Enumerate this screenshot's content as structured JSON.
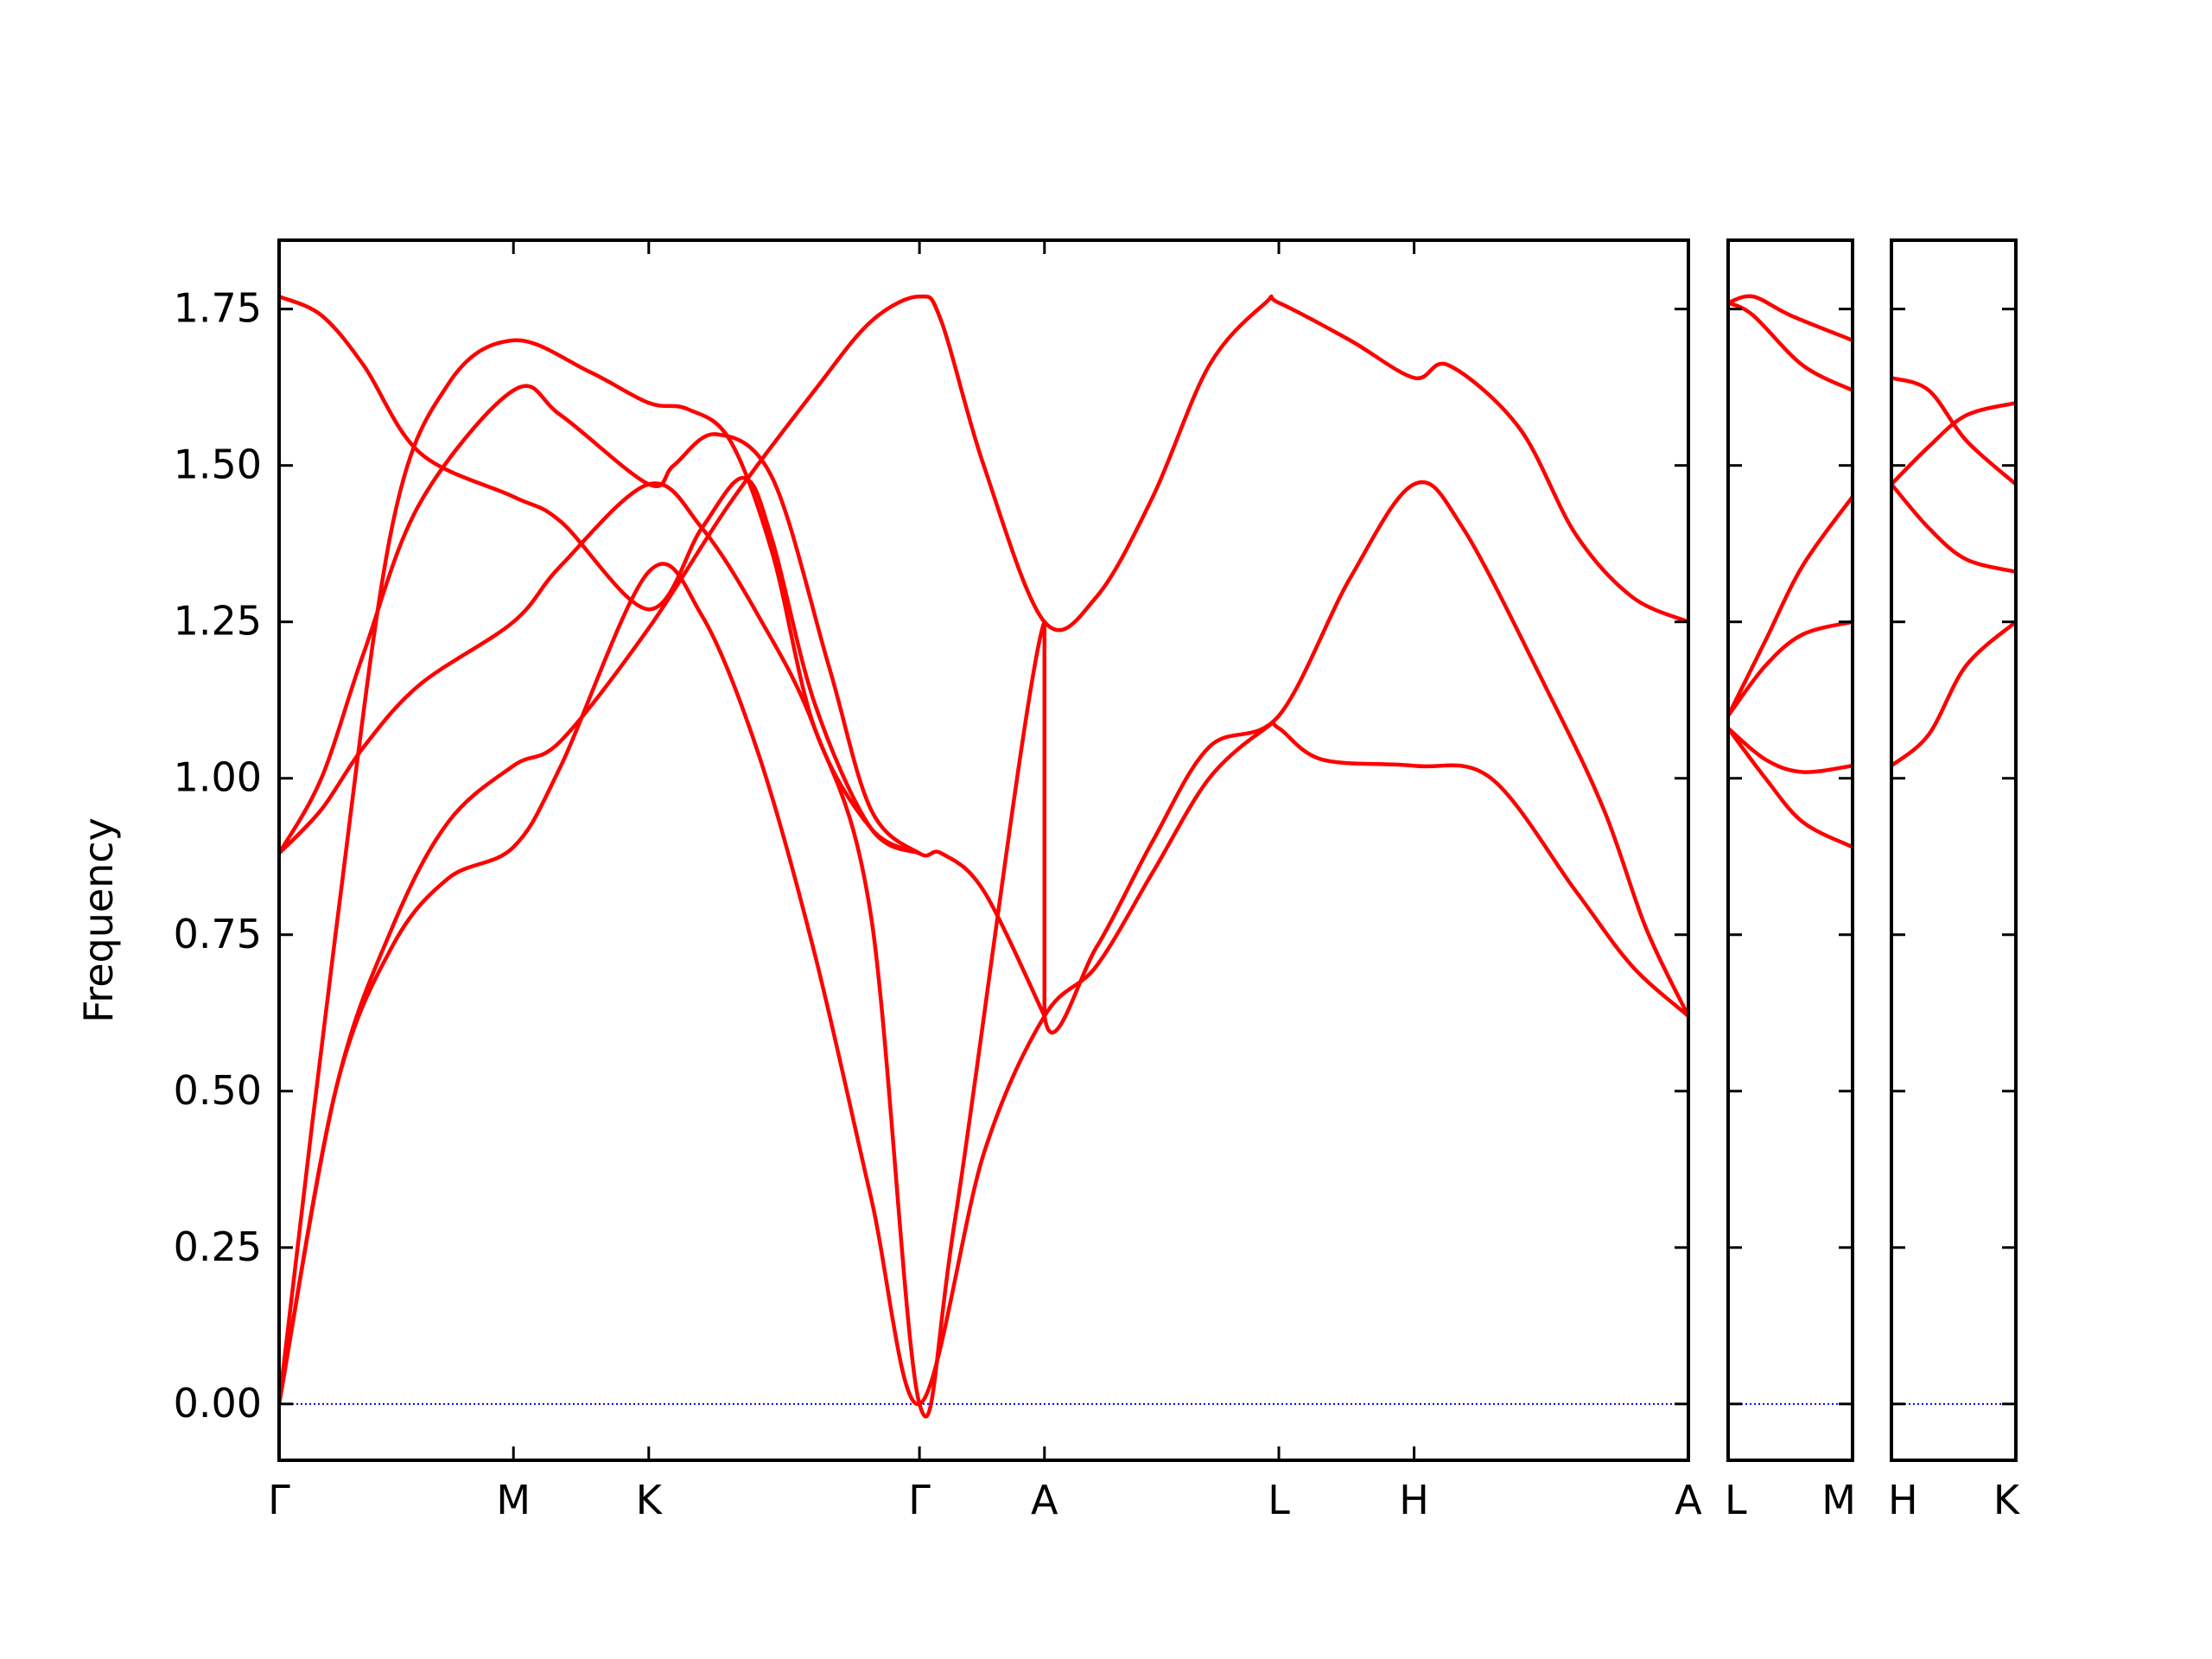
{
  "chart_data": {
    "type": "line",
    "ylabel": "Frequency",
    "xlabel": "",
    "title": "",
    "ylim": [
      -0.09,
      1.86
    ],
    "yticks": [
      "0.00",
      "0.25",
      "0.50",
      "0.75",
      "1.00",
      "1.25",
      "1.50",
      "1.75"
    ],
    "ytick_values": [
      0.0,
      0.25,
      0.5,
      0.75,
      1.0,
      1.25,
      1.5,
      1.75
    ],
    "grid": false,
    "legend": "none",
    "colors": {
      "band": "#ff0000",
      "zero_line": "#0000ff",
      "axes": "#000000"
    },
    "panels": [
      {
        "id": "p1",
        "path_labels": [
          "Γ",
          "M",
          "K",
          "Γ",
          "A",
          "L",
          "H",
          "A"
        ],
        "path_positions": [
          0.0,
          0.1663,
          0.2623,
          0.4544,
          0.5431,
          0.7094,
          0.8054,
          1.0
        ],
        "bands": [
          [
            [
              0,
              0
            ],
            [
              0.04,
              0.5
            ],
            [
              0.08,
              0.76
            ],
            [
              0.12,
              0.93
            ],
            [
              0.1663,
              1.02
            ],
            [
              0.2,
              1.06
            ],
            [
              0.2623,
              1.24
            ],
            [
              0.32,
              1.44
            ],
            [
              0.38,
              1.62
            ],
            [
              0.42,
              1.73
            ],
            [
              0.4544,
              1.77
            ],
            [
              0.47,
              1.73
            ],
            [
              0.5,
              1.5
            ],
            [
              0.5431,
              1.25
            ],
            [
              0.58,
              1.29
            ],
            [
              0.62,
              1.45
            ],
            [
              0.66,
              1.66
            ],
            [
              0.7,
              1.76
            ],
            [
              0.7094,
              1.76
            ],
            [
              0.76,
              1.7
            ],
            [
              0.8054,
              1.64
            ],
            [
              0.83,
              1.66
            ],
            [
              0.88,
              1.56
            ],
            [
              0.92,
              1.39
            ],
            [
              0.96,
              1.29
            ],
            [
              1.0,
              1.25
            ]
          ],
          [
            [
              0,
              0
            ],
            [
              0.04,
              0.5
            ],
            [
              0.08,
              0.73
            ],
            [
              0.12,
              0.84
            ],
            [
              0.1663,
              0.89
            ],
            [
              0.2,
              1.02
            ],
            [
              0.2623,
              1.33
            ],
            [
              0.3,
              1.26
            ],
            [
              0.34,
              1.04
            ],
            [
              0.38,
              0.72
            ],
            [
              0.42,
              0.33
            ],
            [
              0.4544,
              0.0
            ],
            [
              0.5,
              0.4
            ],
            [
              0.5431,
              0.62
            ],
            [
              0.58,
              0.7
            ],
            [
              0.62,
              0.85
            ],
            [
              0.66,
              1.0
            ],
            [
              0.7,
              1.08
            ],
            [
              0.7094,
              1.08
            ],
            [
              0.74,
              1.03
            ],
            [
              0.8054,
              1.02
            ],
            [
              0.86,
              1.0
            ],
            [
              0.92,
              0.82
            ],
            [
              0.96,
              0.7
            ],
            [
              1.0,
              0.62
            ]
          ],
          [
            [
              0,
              0.88
            ],
            [
              0.03,
              0.95
            ],
            [
              0.06,
              1.05
            ],
            [
              0.1,
              1.15
            ],
            [
              0.1663,
              1.25
            ],
            [
              0.2,
              1.34
            ],
            [
              0.2623,
              1.47
            ],
            [
              0.3,
              1.4
            ],
            [
              0.34,
              1.26
            ],
            [
              0.38,
              1.08
            ],
            [
              0.42,
              0.78
            ],
            [
              0.4544,
              0.0
            ],
            [
              0.48,
              0.3
            ],
            [
              0.5431,
              1.25
            ],
            [
              0.5431,
              0.62
            ],
            [
              0.58,
              0.73
            ],
            [
              0.62,
              0.9
            ],
            [
              0.66,
              1.05
            ],
            [
              0.7094,
              1.1
            ],
            [
              0.76,
              1.32
            ],
            [
              0.8054,
              1.47
            ],
            [
              0.84,
              1.4
            ],
            [
              0.9,
              1.14
            ],
            [
              0.94,
              0.95
            ],
            [
              0.97,
              0.76
            ],
            [
              1.0,
              0.62
            ]
          ],
          [
            [
              0,
              0.88
            ],
            [
              0.03,
              1.0
            ],
            [
              0.06,
              1.2
            ],
            [
              0.1,
              1.44
            ],
            [
              0.1663,
              1.62
            ],
            [
              0.2,
              1.58
            ],
            [
              0.2623,
              1.47
            ],
            [
              0.28,
              1.5
            ],
            [
              0.31,
              1.55
            ],
            [
              0.35,
              1.48
            ],
            [
              0.39,
              1.18
            ],
            [
              0.42,
              0.95
            ],
            [
              0.4544,
              0.88
            ],
            [
              0.47,
              0.88
            ],
            [
              0.5,
              0.82
            ],
            [
              0.5431,
              0.62
            ]
          ],
          [
            [
              0,
              1.77
            ],
            [
              0.03,
              1.74
            ],
            [
              0.06,
              1.66
            ],
            [
              0.1,
              1.52
            ],
            [
              0.1663,
              1.45
            ],
            [
              0.2,
              1.41
            ],
            [
              0.2623,
              1.27
            ],
            [
              0.3,
              1.4
            ],
            [
              0.33,
              1.48
            ],
            [
              0.35,
              1.38
            ],
            [
              0.38,
              1.12
            ],
            [
              0.42,
              0.92
            ],
            [
              0.4544,
              0.88
            ]
          ],
          [
            [
              0,
              0
            ],
            [
              0.04,
              0.75
            ],
            [
              0.08,
              1.4
            ],
            [
              0.12,
              1.63
            ],
            [
              0.1663,
              1.7
            ],
            [
              0.22,
              1.65
            ],
            [
              0.2623,
              1.6
            ],
            [
              0.29,
              1.59
            ],
            [
              0.32,
              1.54
            ],
            [
              0.35,
              1.36
            ],
            [
              0.38,
              1.08
            ],
            [
              0.42,
              0.92
            ],
            [
              0.4544,
              0.88
            ]
          ]
        ],
        "zero_line": true
      },
      {
        "id": "p2",
        "path_labels": [
          "L",
          "M"
        ],
        "path_positions": [
          0.0,
          1.0
        ],
        "bands": [
          [
            [
              0,
              1.76
            ],
            [
              0.2,
              1.77
            ],
            [
              0.5,
              1.74
            ],
            [
              1.0,
              1.7
            ]
          ],
          [
            [
              0,
              1.76
            ],
            [
              0.2,
              1.74
            ],
            [
              0.6,
              1.66
            ],
            [
              1.0,
              1.62
            ]
          ],
          [
            [
              0,
              1.1
            ],
            [
              0.3,
              1.22
            ],
            [
              0.6,
              1.34
            ],
            [
              1.0,
              1.45
            ]
          ],
          [
            [
              0,
              1.1
            ],
            [
              0.3,
              1.18
            ],
            [
              0.6,
              1.23
            ],
            [
              1.0,
              1.25
            ]
          ],
          [
            [
              0,
              1.08
            ],
            [
              0.3,
              1.03
            ],
            [
              0.6,
              1.01
            ],
            [
              1.0,
              1.02
            ]
          ],
          [
            [
              0,
              1.08
            ],
            [
              0.3,
              1.0
            ],
            [
              0.6,
              0.93
            ],
            [
              1.0,
              0.89
            ]
          ]
        ],
        "zero_line": true
      },
      {
        "id": "p3",
        "path_labels": [
          "H",
          "K"
        ],
        "path_positions": [
          0.0,
          1.0
        ],
        "bands": [
          [
            [
              0,
              1.64
            ],
            [
              0.3,
              1.62
            ],
            [
              0.6,
              1.54
            ],
            [
              1.0,
              1.47
            ]
          ],
          [
            [
              0,
              1.47
            ],
            [
              0.3,
              1.53
            ],
            [
              0.6,
              1.58
            ],
            [
              1.0,
              1.6
            ]
          ],
          [
            [
              0,
              1.47
            ],
            [
              0.3,
              1.4
            ],
            [
              0.6,
              1.35
            ],
            [
              1.0,
              1.33
            ]
          ],
          [
            [
              0,
              1.02
            ],
            [
              0.3,
              1.07
            ],
            [
              0.6,
              1.18
            ],
            [
              1.0,
              1.25
            ]
          ]
        ],
        "zero_line": true
      }
    ]
  }
}
